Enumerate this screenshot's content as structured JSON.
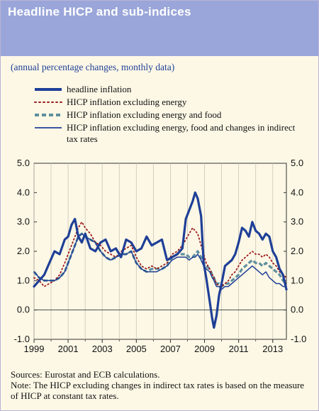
{
  "header": {
    "title": "Headline HICP and sub-indices"
  },
  "subtitle": "(annual percentage changes, monthly data)",
  "legend": [
    {
      "label": "headline inflation",
      "color": "#1f3f97",
      "style": "thick-solid"
    },
    {
      "label": "HICP inflation excluding energy",
      "color": "#9b1c1c",
      "style": "dotted"
    },
    {
      "label": "HICP inflation excluding energy and food",
      "color": "#5f8f9e",
      "style": "thick-dashed"
    },
    {
      "label": "HICP inflation excluding energy, food and changes in indirect tax rates",
      "color": "#1f3f97",
      "style": "thin-solid"
    }
  ],
  "footnote": {
    "sources": "Sources: Eurostat and ECB calculations.",
    "note": "Note: The HICP excluding changes in indirect tax rates is based on the measure of HICP at constant tax rates."
  },
  "chart_data": {
    "type": "line",
    "ylim": [
      -1.0,
      5.0
    ],
    "xlim": [
      1999.0,
      2013.8
    ],
    "y_ticks_left": [
      "5.0",
      "4.0",
      "3.0",
      "2.0",
      "1.0",
      "0.0",
      "-1.0"
    ],
    "y_ticks_right": [
      "5.0",
      "4.0",
      "3.0",
      "2.0",
      "1.0",
      "0.0",
      "-1.0"
    ],
    "y_tick_values": [
      5,
      4,
      3,
      2,
      1,
      0,
      -1
    ],
    "x_ticks": [
      "1999",
      "2001",
      "2003",
      "2005",
      "2007",
      "2009",
      "2011",
      "2013"
    ],
    "x_tick_values": [
      1999,
      2001,
      2003,
      2005,
      2007,
      2009,
      2011,
      2013
    ],
    "grid": "vertical",
    "series": [
      {
        "name": "headline inflation",
        "color": "#1f3f97",
        "points": [
          [
            1999.0,
            0.8
          ],
          [
            1999.3,
            1.0
          ],
          [
            1999.6,
            1.2
          ],
          [
            1999.9,
            1.6
          ],
          [
            2000.2,
            2.0
          ],
          [
            2000.5,
            1.9
          ],
          [
            2000.8,
            2.4
          ],
          [
            2001.0,
            2.5
          ],
          [
            2001.2,
            2.9
          ],
          [
            2001.4,
            3.1
          ],
          [
            2001.6,
            2.5
          ],
          [
            2001.8,
            2.3
          ],
          [
            2002.0,
            2.6
          ],
          [
            2002.3,
            2.1
          ],
          [
            2002.6,
            2.0
          ],
          [
            2002.9,
            2.3
          ],
          [
            2003.2,
            2.4
          ],
          [
            2003.5,
            2.0
          ],
          [
            2003.8,
            2.1
          ],
          [
            2004.1,
            1.8
          ],
          [
            2004.4,
            2.4
          ],
          [
            2004.7,
            2.3
          ],
          [
            2005.0,
            2.0
          ],
          [
            2005.3,
            2.1
          ],
          [
            2005.6,
            2.5
          ],
          [
            2005.9,
            2.2
          ],
          [
            2006.2,
            2.3
          ],
          [
            2006.5,
            2.4
          ],
          [
            2006.8,
            1.7
          ],
          [
            2007.1,
            1.8
          ],
          [
            2007.4,
            1.9
          ],
          [
            2007.7,
            2.1
          ],
          [
            2007.9,
            3.1
          ],
          [
            2008.1,
            3.4
          ],
          [
            2008.3,
            3.7
          ],
          [
            2008.45,
            4.0
          ],
          [
            2008.6,
            3.8
          ],
          [
            2008.8,
            3.2
          ],
          [
            2008.95,
            1.6
          ],
          [
            2009.1,
            1.1
          ],
          [
            2009.3,
            0.3
          ],
          [
            2009.45,
            -0.3
          ],
          [
            2009.55,
            -0.6
          ],
          [
            2009.7,
            -0.2
          ],
          [
            2009.85,
            0.5
          ],
          [
            2010.0,
            0.9
          ],
          [
            2010.2,
            1.5
          ],
          [
            2010.4,
            1.6
          ],
          [
            2010.6,
            1.7
          ],
          [
            2010.8,
            1.9
          ],
          [
            2011.0,
            2.3
          ],
          [
            2011.2,
            2.8
          ],
          [
            2011.4,
            2.7
          ],
          [
            2011.6,
            2.5
          ],
          [
            2011.8,
            3.0
          ],
          [
            2012.0,
            2.7
          ],
          [
            2012.2,
            2.6
          ],
          [
            2012.4,
            2.4
          ],
          [
            2012.6,
            2.6
          ],
          [
            2012.8,
            2.5
          ],
          [
            2013.0,
            2.0
          ],
          [
            2013.2,
            1.8
          ],
          [
            2013.4,
            1.4
          ],
          [
            2013.6,
            1.2
          ],
          [
            2013.8,
            0.7
          ]
        ]
      },
      {
        "name": "HICP inflation excluding energy",
        "color": "#9b1c1c",
        "points": [
          [
            1999.0,
            1.1
          ],
          [
            1999.3,
            1.0
          ],
          [
            1999.6,
            0.8
          ],
          [
            1999.9,
            0.9
          ],
          [
            2000.2,
            1.0
          ],
          [
            2000.5,
            1.2
          ],
          [
            2000.8,
            1.6
          ],
          [
            2001.0,
            1.9
          ],
          [
            2001.2,
            2.2
          ],
          [
            2001.4,
            2.5
          ],
          [
            2001.6,
            2.8
          ],
          [
            2001.8,
            3.0
          ],
          [
            2002.0,
            2.8
          ],
          [
            2002.3,
            2.6
          ],
          [
            2002.6,
            2.3
          ],
          [
            2002.9,
            2.2
          ],
          [
            2003.2,
            2.0
          ],
          [
            2003.5,
            1.9
          ],
          [
            2003.8,
            1.8
          ],
          [
            2004.1,
            2.0
          ],
          [
            2004.4,
            2.1
          ],
          [
            2004.7,
            2.2
          ],
          [
            2005.0,
            1.8
          ],
          [
            2005.3,
            1.5
          ],
          [
            2005.6,
            1.4
          ],
          [
            2005.9,
            1.5
          ],
          [
            2006.2,
            1.4
          ],
          [
            2006.5,
            1.5
          ],
          [
            2006.8,
            1.6
          ],
          [
            2007.1,
            1.9
          ],
          [
            2007.4,
            2.0
          ],
          [
            2007.7,
            2.2
          ],
          [
            2007.9,
            2.4
          ],
          [
            2008.1,
            2.6
          ],
          [
            2008.3,
            2.8
          ],
          [
            2008.45,
            2.7
          ],
          [
            2008.6,
            2.6
          ],
          [
            2008.8,
            2.2
          ],
          [
            2008.95,
            1.9
          ],
          [
            2009.1,
            1.6
          ],
          [
            2009.3,
            1.4
          ],
          [
            2009.45,
            1.2
          ],
          [
            2009.55,
            1.1
          ],
          [
            2009.7,
            0.9
          ],
          [
            2009.85,
            0.8
          ],
          [
            2010.0,
            0.8
          ],
          [
            2010.2,
            0.9
          ],
          [
            2010.4,
            1.0
          ],
          [
            2010.6,
            1.2
          ],
          [
            2010.8,
            1.3
          ],
          [
            2011.0,
            1.5
          ],
          [
            2011.2,
            1.7
          ],
          [
            2011.4,
            1.8
          ],
          [
            2011.6,
            1.9
          ],
          [
            2011.8,
            2.0
          ],
          [
            2012.0,
            1.9
          ],
          [
            2012.2,
            1.9
          ],
          [
            2012.4,
            1.8
          ],
          [
            2012.6,
            1.9
          ],
          [
            2012.8,
            1.8
          ],
          [
            2013.0,
            1.6
          ],
          [
            2013.2,
            1.5
          ],
          [
            2013.4,
            1.3
          ],
          [
            2013.6,
            1.2
          ],
          [
            2013.8,
            1.1
          ]
        ]
      },
      {
        "name": "HICP inflation excluding energy and food",
        "color": "#5f8f9e",
        "points": [
          [
            1999.0,
            1.3
          ],
          [
            1999.3,
            1.1
          ],
          [
            1999.6,
            1.0
          ],
          [
            1999.9,
            1.0
          ],
          [
            2000.2,
            1.0
          ],
          [
            2000.5,
            1.1
          ],
          [
            2000.8,
            1.3
          ],
          [
            2001.0,
            1.6
          ],
          [
            2001.2,
            1.9
          ],
          [
            2001.4,
            2.2
          ],
          [
            2001.6,
            2.5
          ],
          [
            2001.8,
            2.6
          ],
          [
            2002.0,
            2.5
          ],
          [
            2002.3,
            2.4
          ],
          [
            2002.6,
            2.3
          ],
          [
            2002.9,
            2.0
          ],
          [
            2003.2,
            1.8
          ],
          [
            2003.5,
            1.7
          ],
          [
            2003.8,
            1.8
          ],
          [
            2004.1,
            1.9
          ],
          [
            2004.4,
            1.9
          ],
          [
            2004.7,
            2.0
          ],
          [
            2005.0,
            1.6
          ],
          [
            2005.3,
            1.4
          ],
          [
            2005.6,
            1.3
          ],
          [
            2005.9,
            1.4
          ],
          [
            2006.2,
            1.4
          ],
          [
            2006.5,
            1.4
          ],
          [
            2006.8,
            1.5
          ],
          [
            2007.1,
            1.8
          ],
          [
            2007.4,
            1.9
          ],
          [
            2007.7,
            1.9
          ],
          [
            2007.9,
            1.9
          ],
          [
            2008.1,
            1.8
          ],
          [
            2008.3,
            1.8
          ],
          [
            2008.45,
            1.9
          ],
          [
            2008.6,
            2.0
          ],
          [
            2008.8,
            1.8
          ],
          [
            2008.95,
            1.6
          ],
          [
            2009.1,
            1.5
          ],
          [
            2009.3,
            1.4
          ],
          [
            2009.45,
            1.2
          ],
          [
            2009.55,
            1.1
          ],
          [
            2009.7,
            0.9
          ],
          [
            2009.85,
            0.9
          ],
          [
            2010.0,
            0.8
          ],
          [
            2010.2,
            0.9
          ],
          [
            2010.4,
            0.9
          ],
          [
            2010.6,
            1.0
          ],
          [
            2010.8,
            1.1
          ],
          [
            2011.0,
            1.2
          ],
          [
            2011.2,
            1.4
          ],
          [
            2011.4,
            1.5
          ],
          [
            2011.6,
            1.6
          ],
          [
            2011.8,
            1.7
          ],
          [
            2012.0,
            1.6
          ],
          [
            2012.2,
            1.6
          ],
          [
            2012.4,
            1.5
          ],
          [
            2012.6,
            1.6
          ],
          [
            2012.8,
            1.5
          ],
          [
            2013.0,
            1.4
          ],
          [
            2013.2,
            1.3
          ],
          [
            2013.4,
            1.2
          ],
          [
            2013.6,
            1.0
          ],
          [
            2013.8,
            0.9
          ]
        ]
      },
      {
        "name": "HICP inflation excluding energy, food and changes in indirect tax rates",
        "color": "#1f3f97",
        "points": [
          [
            1999.0,
            1.3
          ],
          [
            1999.3,
            1.1
          ],
          [
            1999.6,
            1.0
          ],
          [
            1999.9,
            1.0
          ],
          [
            2000.2,
            1.0
          ],
          [
            2000.5,
            1.1
          ],
          [
            2000.8,
            1.3
          ],
          [
            2001.0,
            1.6
          ],
          [
            2001.2,
            1.9
          ],
          [
            2001.4,
            2.2
          ],
          [
            2001.6,
            2.5
          ],
          [
            2001.8,
            2.6
          ],
          [
            2002.0,
            2.5
          ],
          [
            2002.3,
            2.4
          ],
          [
            2002.6,
            2.3
          ],
          [
            2002.9,
            2.0
          ],
          [
            2003.2,
            1.8
          ],
          [
            2003.5,
            1.7
          ],
          [
            2003.8,
            1.8
          ],
          [
            2004.1,
            1.9
          ],
          [
            2004.4,
            1.9
          ],
          [
            2004.7,
            2.0
          ],
          [
            2005.0,
            1.6
          ],
          [
            2005.3,
            1.4
          ],
          [
            2005.6,
            1.3
          ],
          [
            2005.9,
            1.3
          ],
          [
            2006.2,
            1.3
          ],
          [
            2006.5,
            1.4
          ],
          [
            2006.8,
            1.5
          ],
          [
            2007.1,
            1.7
          ],
          [
            2007.4,
            1.8
          ],
          [
            2007.7,
            1.8
          ],
          [
            2007.9,
            1.8
          ],
          [
            2008.1,
            1.7
          ],
          [
            2008.3,
            1.8
          ],
          [
            2008.45,
            1.8
          ],
          [
            2008.6,
            1.9
          ],
          [
            2008.8,
            1.7
          ],
          [
            2008.95,
            1.5
          ],
          [
            2009.1,
            1.4
          ],
          [
            2009.3,
            1.3
          ],
          [
            2009.45,
            1.1
          ],
          [
            2009.55,
            1.0
          ],
          [
            2009.7,
            0.8
          ],
          [
            2009.85,
            0.8
          ],
          [
            2010.0,
            0.7
          ],
          [
            2010.2,
            0.8
          ],
          [
            2010.4,
            0.8
          ],
          [
            2010.6,
            0.9
          ],
          [
            2010.8,
            1.0
          ],
          [
            2011.0,
            1.1
          ],
          [
            2011.2,
            1.2
          ],
          [
            2011.4,
            1.3
          ],
          [
            2011.6,
            1.4
          ],
          [
            2011.8,
            1.5
          ],
          [
            2012.0,
            1.4
          ],
          [
            2012.2,
            1.3
          ],
          [
            2012.4,
            1.2
          ],
          [
            2012.6,
            1.3
          ],
          [
            2012.8,
            1.1
          ],
          [
            2013.0,
            1.0
          ],
          [
            2013.2,
            0.9
          ],
          [
            2013.4,
            0.9
          ],
          [
            2013.6,
            0.8
          ],
          [
            2013.8,
            0.8
          ]
        ]
      }
    ]
  }
}
